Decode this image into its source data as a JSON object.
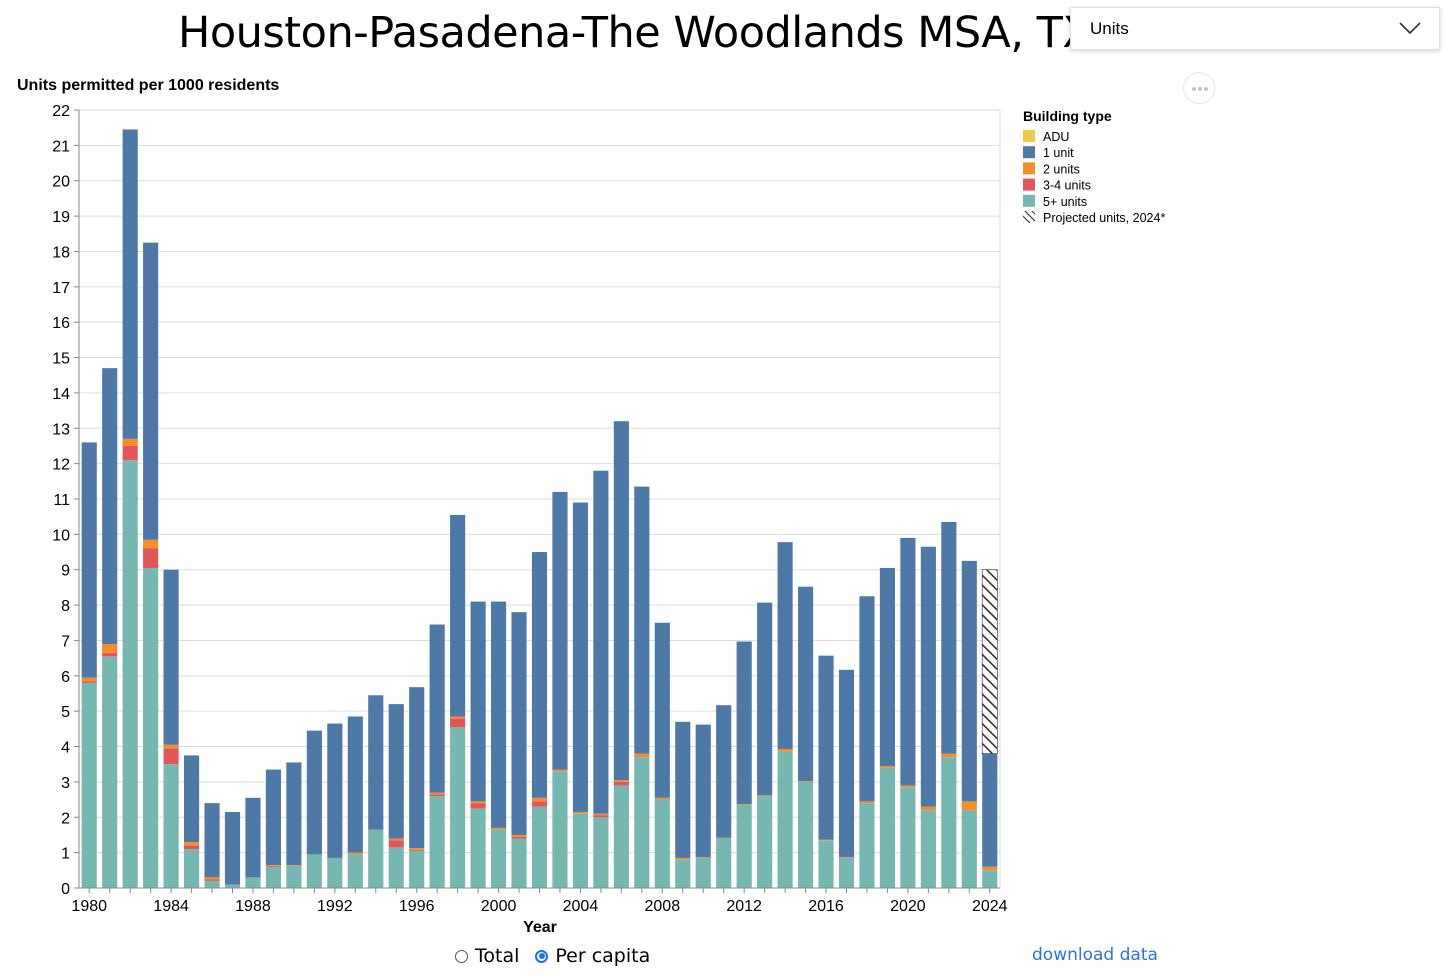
{
  "header": {
    "title": "Houston-Pasadena-The Woodlands MSA, TX",
    "dropdown_value": "Units"
  },
  "controls": {
    "radio_total": "Total",
    "radio_per_capita": "Per capita",
    "selected": "Per capita",
    "download_label": "download data"
  },
  "icons": {
    "dropdown": "chevron-down-icon",
    "more": "more-horizontal-icon"
  },
  "chart_data": {
    "type": "bar",
    "stacked": true,
    "ylabel": "Units permitted per 1000 residents",
    "xlabel": "Year",
    "ylim": [
      0,
      22
    ],
    "yticks": [
      0,
      1,
      2,
      3,
      4,
      5,
      6,
      7,
      8,
      9,
      10,
      11,
      12,
      13,
      14,
      15,
      16,
      17,
      18,
      19,
      20,
      21,
      22
    ],
    "xtick_labels": [
      "1980",
      "1984",
      "1988",
      "1992",
      "1996",
      "2000",
      "2004",
      "2008",
      "2012",
      "2016",
      "2020",
      "2024"
    ],
    "grid": true,
    "legend": {
      "title": "Building type",
      "placement": "top-right",
      "entries": [
        "ADU",
        "1 unit",
        "2 units",
        "3-4 units",
        "5+ units",
        "Projected units, 2024*"
      ]
    },
    "colors": {
      "ADU": "#f2c94c",
      "1 unit": "#4e79a7",
      "2 units": "#f28e2b",
      "3-4 units": "#e15759",
      "5+ units": "#76b7b2",
      "projected": "#333333"
    },
    "categories": [
      1980,
      1981,
      1982,
      1983,
      1984,
      1985,
      1986,
      1987,
      1988,
      1989,
      1990,
      1991,
      1992,
      1993,
      1994,
      1995,
      1996,
      1997,
      1998,
      1999,
      2000,
      2001,
      2002,
      2003,
      2004,
      2005,
      2006,
      2007,
      2008,
      2009,
      2010,
      2011,
      2012,
      2013,
      2014,
      2015,
      2016,
      2017,
      2018,
      2019,
      2020,
      2021,
      2022,
      2023,
      2024
    ],
    "series": [
      {
        "name": "5+ units",
        "values": [
          5.8,
          6.55,
          12.1,
          9.05,
          3.5,
          1.1,
          0.2,
          0.1,
          0.3,
          0.6,
          0.63,
          0.95,
          0.85,
          0.95,
          1.65,
          1.15,
          1.05,
          2.6,
          4.55,
          2.25,
          1.65,
          1.4,
          2.3,
          3.3,
          2.1,
          2.0,
          2.9,
          3.7,
          2.5,
          0.8,
          0.85,
          1.4,
          2.35,
          2.6,
          3.85,
          3.0,
          1.35,
          0.85,
          2.4,
          3.4,
          2.85,
          2.2,
          3.7,
          2.2,
          0.5
        ]
      },
      {
        "name": "3-4 units",
        "values": [
          0.05,
          0.1,
          0.4,
          0.55,
          0.45,
          0.1,
          0.05,
          0.0,
          0.0,
          0.03,
          0.0,
          0.0,
          0.0,
          0.0,
          0.0,
          0.2,
          0.03,
          0.05,
          0.25,
          0.15,
          0.0,
          0.05,
          0.15,
          0.0,
          0.0,
          0.05,
          0.1,
          0.0,
          0.0,
          0.0,
          0.0,
          0.0,
          0.0,
          0.0,
          0.0,
          0.0,
          0.0,
          0.0,
          0.0,
          0.0,
          0.0,
          0.0,
          0.0,
          0.0,
          0.0
        ]
      },
      {
        "name": "2 units",
        "values": [
          0.1,
          0.25,
          0.2,
          0.25,
          0.1,
          0.1,
          0.05,
          0.0,
          0.0,
          0.02,
          0.02,
          0.0,
          0.0,
          0.05,
          0.0,
          0.05,
          0.05,
          0.05,
          0.05,
          0.05,
          0.05,
          0.05,
          0.1,
          0.05,
          0.05,
          0.05,
          0.05,
          0.1,
          0.05,
          0.05,
          0.02,
          0.02,
          0.02,
          0.02,
          0.08,
          0.02,
          0.02,
          0.02,
          0.05,
          0.05,
          0.05,
          0.1,
          0.1,
          0.25,
          0.1
        ]
      },
      {
        "name": "1 unit",
        "values": [
          6.65,
          7.8,
          8.75,
          8.4,
          4.95,
          2.45,
          2.1,
          2.05,
          2.25,
          2.7,
          2.9,
          3.5,
          3.8,
          3.85,
          3.8,
          3.8,
          4.55,
          4.75,
          5.7,
          5.65,
          6.4,
          6.3,
          6.95,
          7.85,
          8.75,
          9.7,
          10.15,
          7.55,
          4.95,
          3.85,
          3.75,
          3.75,
          4.6,
          5.45,
          5.85,
          5.5,
          5.2,
          5.3,
          5.8,
          5.6,
          7.0,
          7.35,
          6.55,
          6.8,
          3.2
        ]
      },
      {
        "name": "ADU",
        "values": [
          0,
          0,
          0,
          0,
          0,
          0,
          0,
          0,
          0,
          0,
          0,
          0,
          0,
          0,
          0,
          0,
          0,
          0,
          0,
          0,
          0,
          0,
          0,
          0,
          0,
          0,
          0,
          0,
          0,
          0,
          0,
          0,
          0,
          0,
          0,
          0,
          0,
          0,
          0,
          0,
          0,
          0,
          0,
          0,
          0
        ]
      }
    ],
    "projected": {
      "category": 2024,
      "value": 9.0
    }
  }
}
